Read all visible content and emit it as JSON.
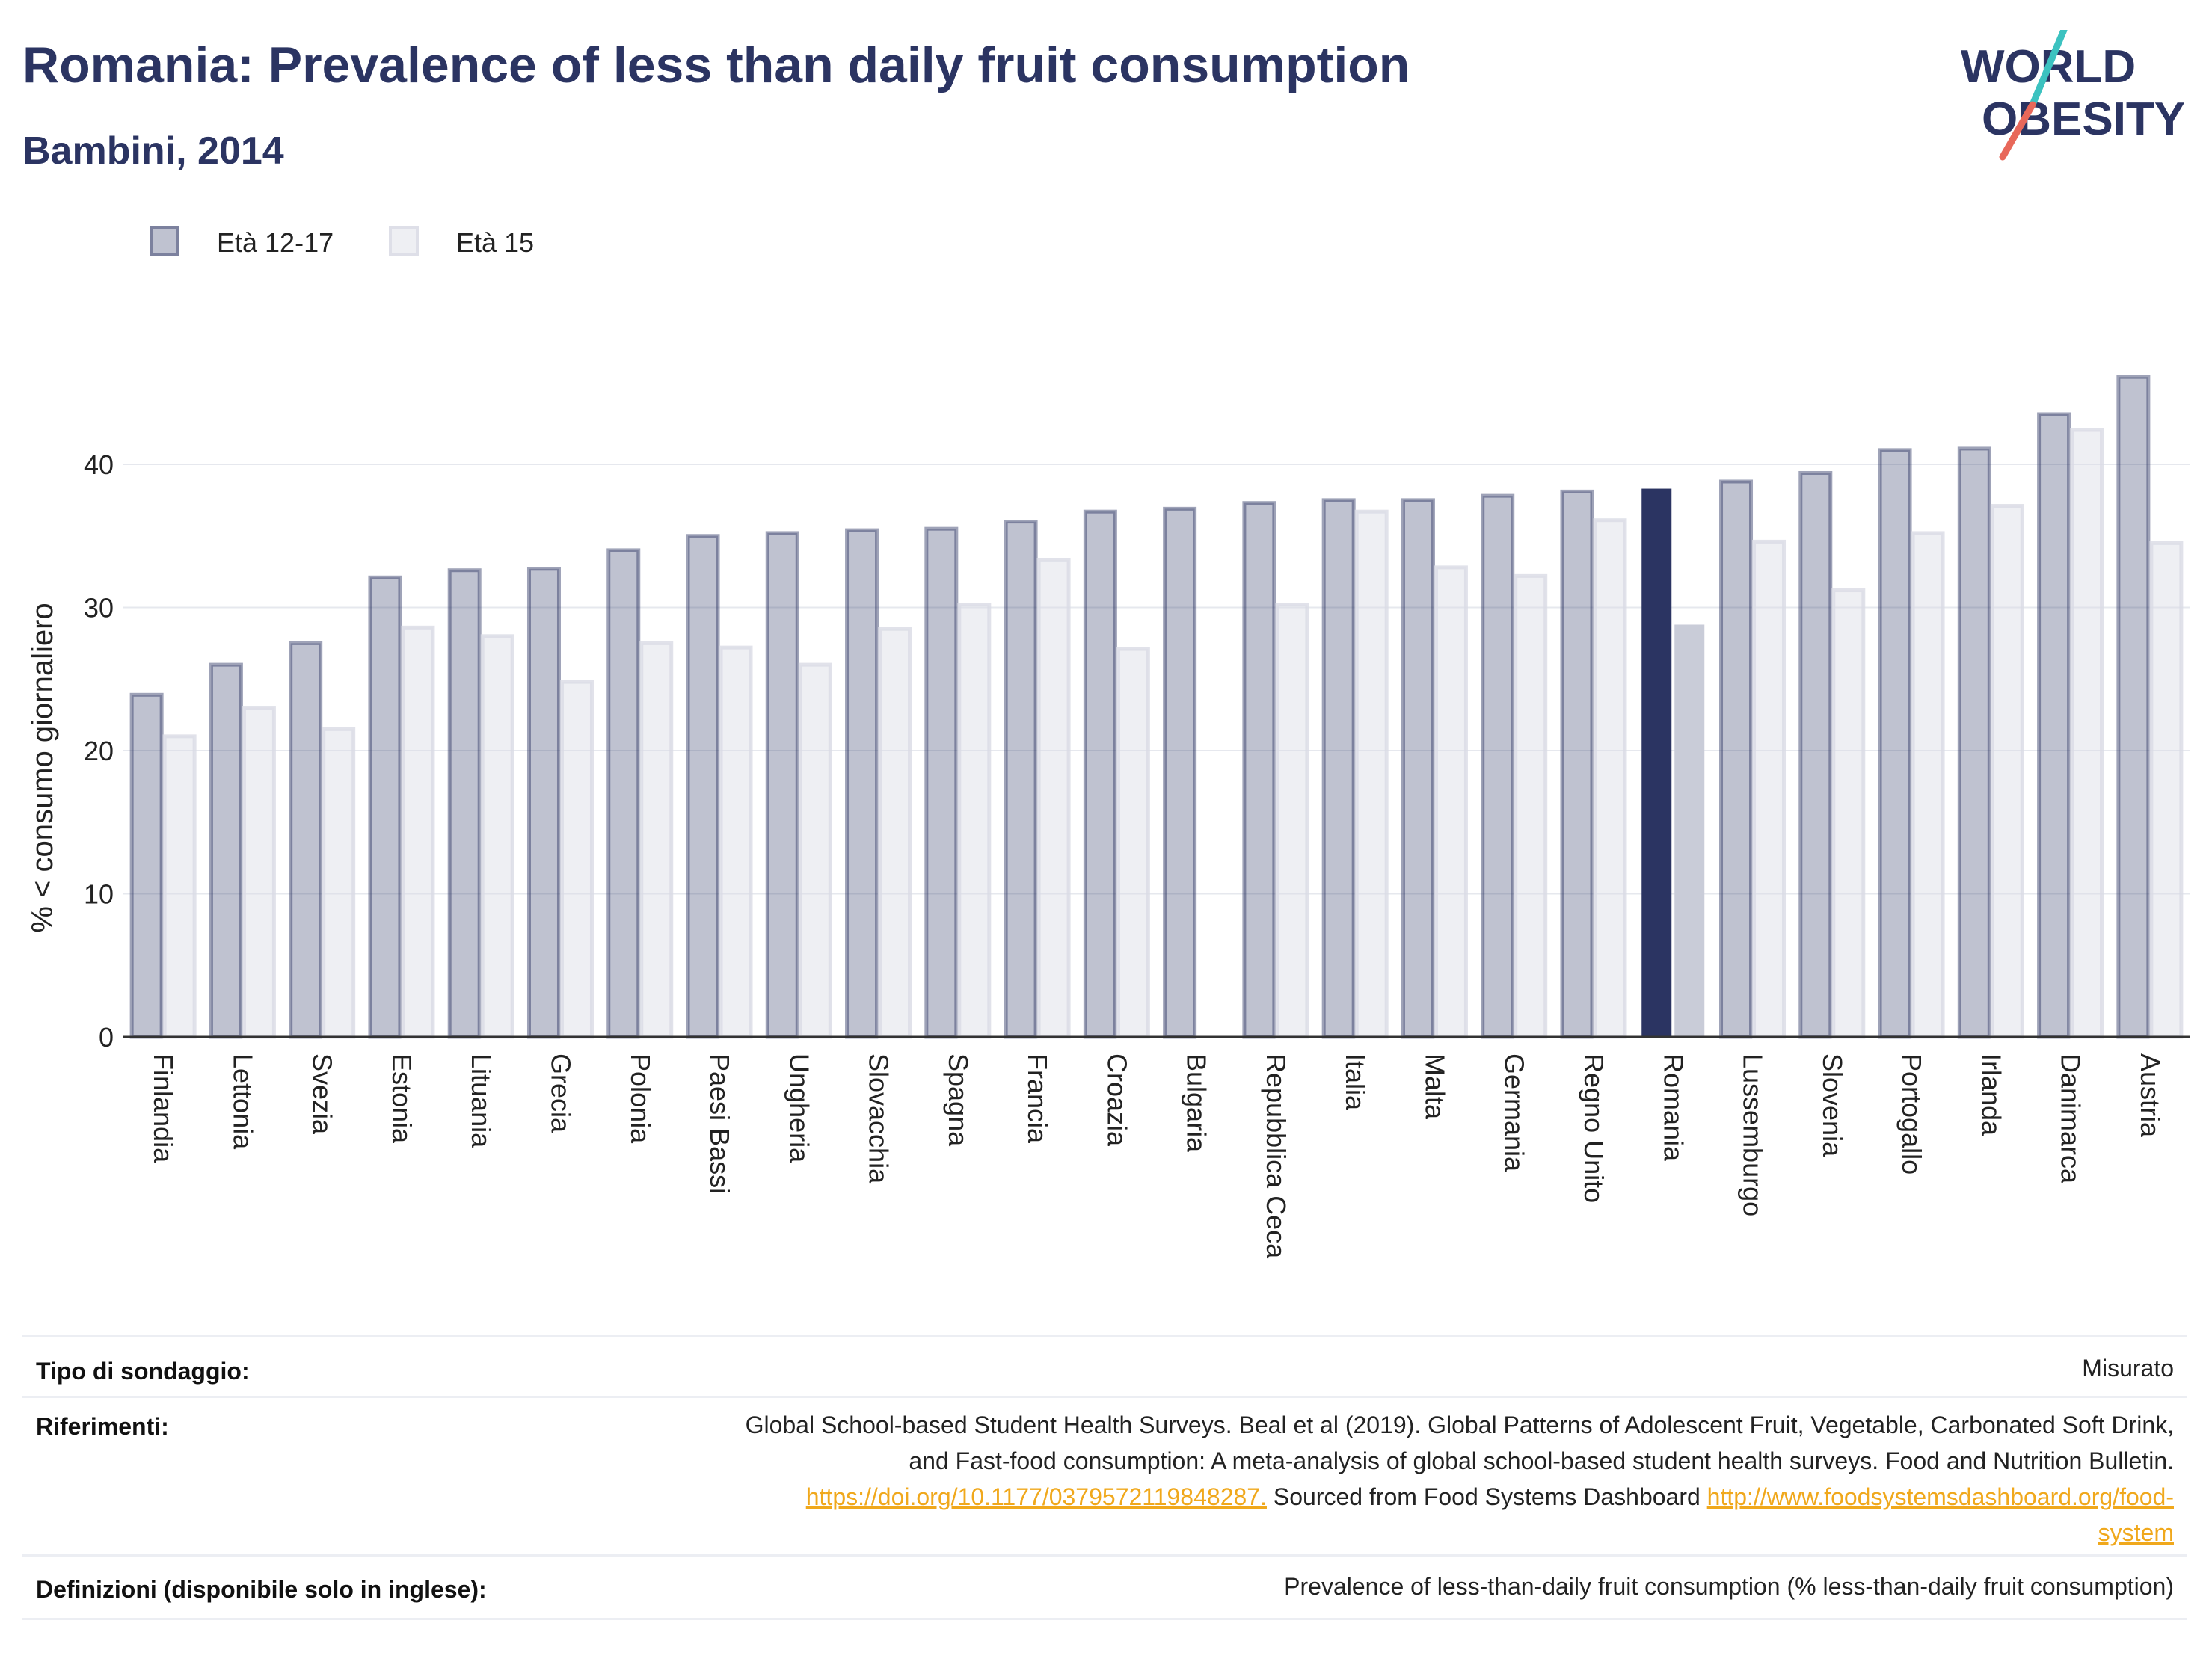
{
  "header": {
    "title": "Romania: Prevalence of less than daily fruit consumption",
    "subtitle": "Bambini, 2014"
  },
  "logo": {
    "line1": "WORLD",
    "line2": "OBESITY",
    "colors": {
      "text": "#2b3462",
      "slash_red": "#e8685a",
      "slash_teal": "#3cc2c0"
    }
  },
  "legend": [
    {
      "label": "Età 12-17",
      "color": "#2b3462"
    },
    {
      "label": "Età 15",
      "color": "#d9dbe5"
    }
  ],
  "chart_data": {
    "type": "bar",
    "ylabel": "% < consumo giornaliero",
    "ylim": [
      0,
      48
    ],
    "yticks": [
      0,
      10,
      20,
      30,
      40
    ],
    "grid": true,
    "legend_position": "top-left",
    "highlight": "Romania",
    "categories": [
      "Finlandia",
      "Lettonia",
      "Svezia",
      "Estonia",
      "Lituania",
      "Grecia",
      "Polonia",
      "Paesi Bassi",
      "Ungheria",
      "Slovacchia",
      "Spagna",
      "Francia",
      "Croazia",
      "Bulgaria",
      "Repubblica Ceca",
      "Italia",
      "Malta",
      "Germania",
      "Regno Unito",
      "Romania",
      "Lussemburgo",
      "Slovenia",
      "Portogallo",
      "Irlanda",
      "Danimarca",
      "Austria"
    ],
    "series": [
      {
        "name": "Età 12-17",
        "color": "#2b3462",
        "values": [
          23.9,
          26.0,
          27.5,
          32.1,
          32.6,
          32.7,
          34.0,
          35.0,
          35.2,
          35.4,
          35.5,
          36.0,
          36.7,
          36.9,
          37.3,
          37.5,
          37.5,
          37.8,
          38.1,
          38.3,
          38.8,
          39.4,
          41.0,
          41.1,
          43.5,
          46.1
        ]
      },
      {
        "name": "Età 15",
        "color": "#d9dbe5",
        "values": [
          21.0,
          23.0,
          21.5,
          28.6,
          28.0,
          24.8,
          27.5,
          27.2,
          26.0,
          28.5,
          30.2,
          33.3,
          27.1,
          null,
          30.2,
          36.7,
          32.8,
          32.2,
          36.1,
          28.8,
          34.6,
          31.2,
          35.2,
          37.1,
          42.4,
          34.5
        ]
      }
    ]
  },
  "info": {
    "survey_type_label": "Tipo di sondaggio:",
    "survey_type_value": "Misurato",
    "references_label": "Riferimenti:",
    "references_line1": "Global School-based Student Health Surveys. Beal et al (2019). Global Patterns of Adolescent Fruit, Vegetable, Carbonated Soft Drink,",
    "references_line2": "and Fast-food consumption: A meta-analysis of global school-based student health surveys. Food and Nutrition Bulletin.",
    "references_link1": "https://doi.org/10.1177/0379572119848287.",
    "references_mid": " Sourced from Food Systems Dashboard ",
    "references_link2a": "http://www.foodsystemsdashboard.org/food-",
    "references_link2b": "system",
    "definitions_label": "Definizioni (disponibile solo in inglese):",
    "definitions_value": "Prevalence of less-than-daily fruit consumption (% less-than-daily fruit consumption)"
  }
}
